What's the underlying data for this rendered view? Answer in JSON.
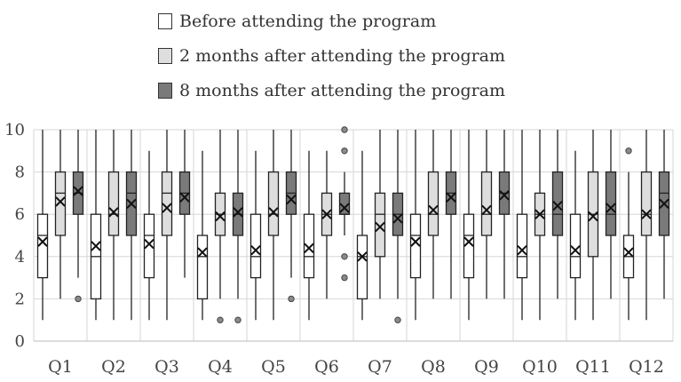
{
  "chart_data": {
    "type": "box",
    "categories": [
      "Q1",
      "Q2",
      "Q3",
      "Q4",
      "Q5",
      "Q6",
      "Q7",
      "Q8",
      "Q9",
      "Q10",
      "Q11",
      "Q12"
    ],
    "ylim": [
      0,
      10
    ],
    "yticks": [
      "0",
      "2",
      "4",
      "6",
      "8",
      "10"
    ],
    "grid": true,
    "legend_position": "top",
    "series": [
      {
        "name": "Before attending the program",
        "color": "#ffffff",
        "boxes": [
          {
            "min": 1,
            "q1": 3,
            "median": 5,
            "q3": 6,
            "max": 10,
            "mean": 4.7,
            "outliers": []
          },
          {
            "min": 1,
            "q1": 2,
            "median": 4,
            "q3": 6,
            "max": 10,
            "mean": 4.5,
            "outliers": []
          },
          {
            "min": 1,
            "q1": 3,
            "median": 5,
            "q3": 6,
            "max": 9,
            "mean": 4.6,
            "outliers": []
          },
          {
            "min": 1,
            "q1": 2,
            "median": 4,
            "q3": 5,
            "max": 9,
            "mean": 4.2,
            "outliers": []
          },
          {
            "min": 1,
            "q1": 3,
            "median": 4,
            "q3": 6,
            "max": 9,
            "mean": 4.3,
            "outliers": []
          },
          {
            "min": 1,
            "q1": 3,
            "median": 4,
            "q3": 6,
            "max": 9,
            "mean": 4.4,
            "outliers": []
          },
          {
            "min": 1,
            "q1": 2,
            "median": 4,
            "q3": 5,
            "max": 9,
            "mean": 4.0,
            "outliers": []
          },
          {
            "min": 1,
            "q1": 3,
            "median": 5,
            "q3": 6,
            "max": 10,
            "mean": 4.7,
            "outliers": []
          },
          {
            "min": 1,
            "q1": 3,
            "median": 5,
            "q3": 6,
            "max": 10,
            "mean": 4.7,
            "outliers": []
          },
          {
            "min": 1,
            "q1": 3,
            "median": 4,
            "q3": 6,
            "max": 10,
            "mean": 4.3,
            "outliers": []
          },
          {
            "min": 1,
            "q1": 3,
            "median": 4,
            "q3": 6,
            "max": 9,
            "mean": 4.3,
            "outliers": []
          },
          {
            "min": 1,
            "q1": 3,
            "median": 4,
            "q3": 5,
            "max": 8,
            "mean": 4.2,
            "outliers": [
              9
            ]
          }
        ]
      },
      {
        "name": "2 months after attending the program",
        "color": "#dedede",
        "boxes": [
          {
            "min": 2,
            "q1": 5,
            "median": 7,
            "q3": 8,
            "max": 10,
            "mean": 6.6,
            "outliers": []
          },
          {
            "min": 1,
            "q1": 5,
            "median": 6,
            "q3": 8,
            "max": 10,
            "mean": 6.1,
            "outliers": []
          },
          {
            "min": 1,
            "q1": 5,
            "median": 7,
            "q3": 8,
            "max": 10,
            "mean": 6.3,
            "outliers": []
          },
          {
            "min": 2,
            "q1": 5,
            "median": 6,
            "q3": 7,
            "max": 10,
            "mean": 5.9,
            "outliers": [
              1
            ]
          },
          {
            "min": 1,
            "q1": 5,
            "median": 6,
            "q3": 8,
            "max": 10,
            "mean": 6.1,
            "outliers": []
          },
          {
            "min": 2,
            "q1": 5,
            "median": 6,
            "q3": 7,
            "max": 9,
            "mean": 6.0,
            "outliers": []
          },
          {
            "min": 2,
            "q1": 4,
            "median": 6,
            "q3": 7,
            "max": 10,
            "mean": 5.4,
            "outliers": []
          },
          {
            "min": 2,
            "q1": 5,
            "median": 6,
            "q3": 8,
            "max": 10,
            "mean": 6.2,
            "outliers": []
          },
          {
            "min": 2,
            "q1": 5,
            "median": 6,
            "q3": 8,
            "max": 10,
            "mean": 6.2,
            "outliers": []
          },
          {
            "min": 1,
            "q1": 5,
            "median": 6,
            "q3": 7,
            "max": 10,
            "mean": 6.0,
            "outliers": []
          },
          {
            "min": 1,
            "q1": 4,
            "median": 6,
            "q3": 8,
            "max": 10,
            "mean": 5.9,
            "outliers": []
          },
          {
            "min": 1,
            "q1": 5,
            "median": 6,
            "q3": 8,
            "max": 10,
            "mean": 6.0,
            "outliers": []
          }
        ]
      },
      {
        "name": "8 months after attending the program",
        "color": "#7a7a7a",
        "boxes": [
          {
            "min": 3,
            "q1": 6,
            "median": 7,
            "q3": 8,
            "max": 10,
            "mean": 7.1,
            "outliers": [
              2
            ]
          },
          {
            "min": 1,
            "q1": 5,
            "median": 7,
            "q3": 8,
            "max": 10,
            "mean": 6.5,
            "outliers": []
          },
          {
            "min": 3,
            "q1": 6,
            "median": 7,
            "q3": 8,
            "max": 10,
            "mean": 6.8,
            "outliers": []
          },
          {
            "min": 2,
            "q1": 5,
            "median": 6,
            "q3": 7,
            "max": 10,
            "mean": 6.1,
            "outliers": [
              1
            ]
          },
          {
            "min": 3,
            "q1": 6,
            "median": 7,
            "q3": 8,
            "max": 10,
            "mean": 6.7,
            "outliers": [
              2
            ]
          },
          {
            "min": 5,
            "q1": 6,
            "median": 6,
            "q3": 7,
            "max": 8,
            "mean": 6.3,
            "outliers": [
              10,
              9,
              4,
              3
            ]
          },
          {
            "min": 2,
            "q1": 5,
            "median": 6,
            "q3": 7,
            "max": 10,
            "mean": 5.8,
            "outliers": [
              1
            ]
          },
          {
            "min": 2,
            "q1": 6,
            "median": 7,
            "q3": 8,
            "max": 10,
            "mean": 6.8,
            "outliers": []
          },
          {
            "min": 2,
            "q1": 6,
            "median": 7,
            "q3": 8,
            "max": 10,
            "mean": 6.9,
            "outliers": []
          },
          {
            "min": 2,
            "q1": 5,
            "median": 6,
            "q3": 8,
            "max": 10,
            "mean": 6.4,
            "outliers": []
          },
          {
            "min": 2,
            "q1": 5,
            "median": 6,
            "q3": 8,
            "max": 10,
            "mean": 6.3,
            "outliers": []
          },
          {
            "min": 2,
            "q1": 5,
            "median": 7,
            "q3": 8,
            "max": 10,
            "mean": 6.5,
            "outliers": []
          }
        ]
      }
    ]
  }
}
